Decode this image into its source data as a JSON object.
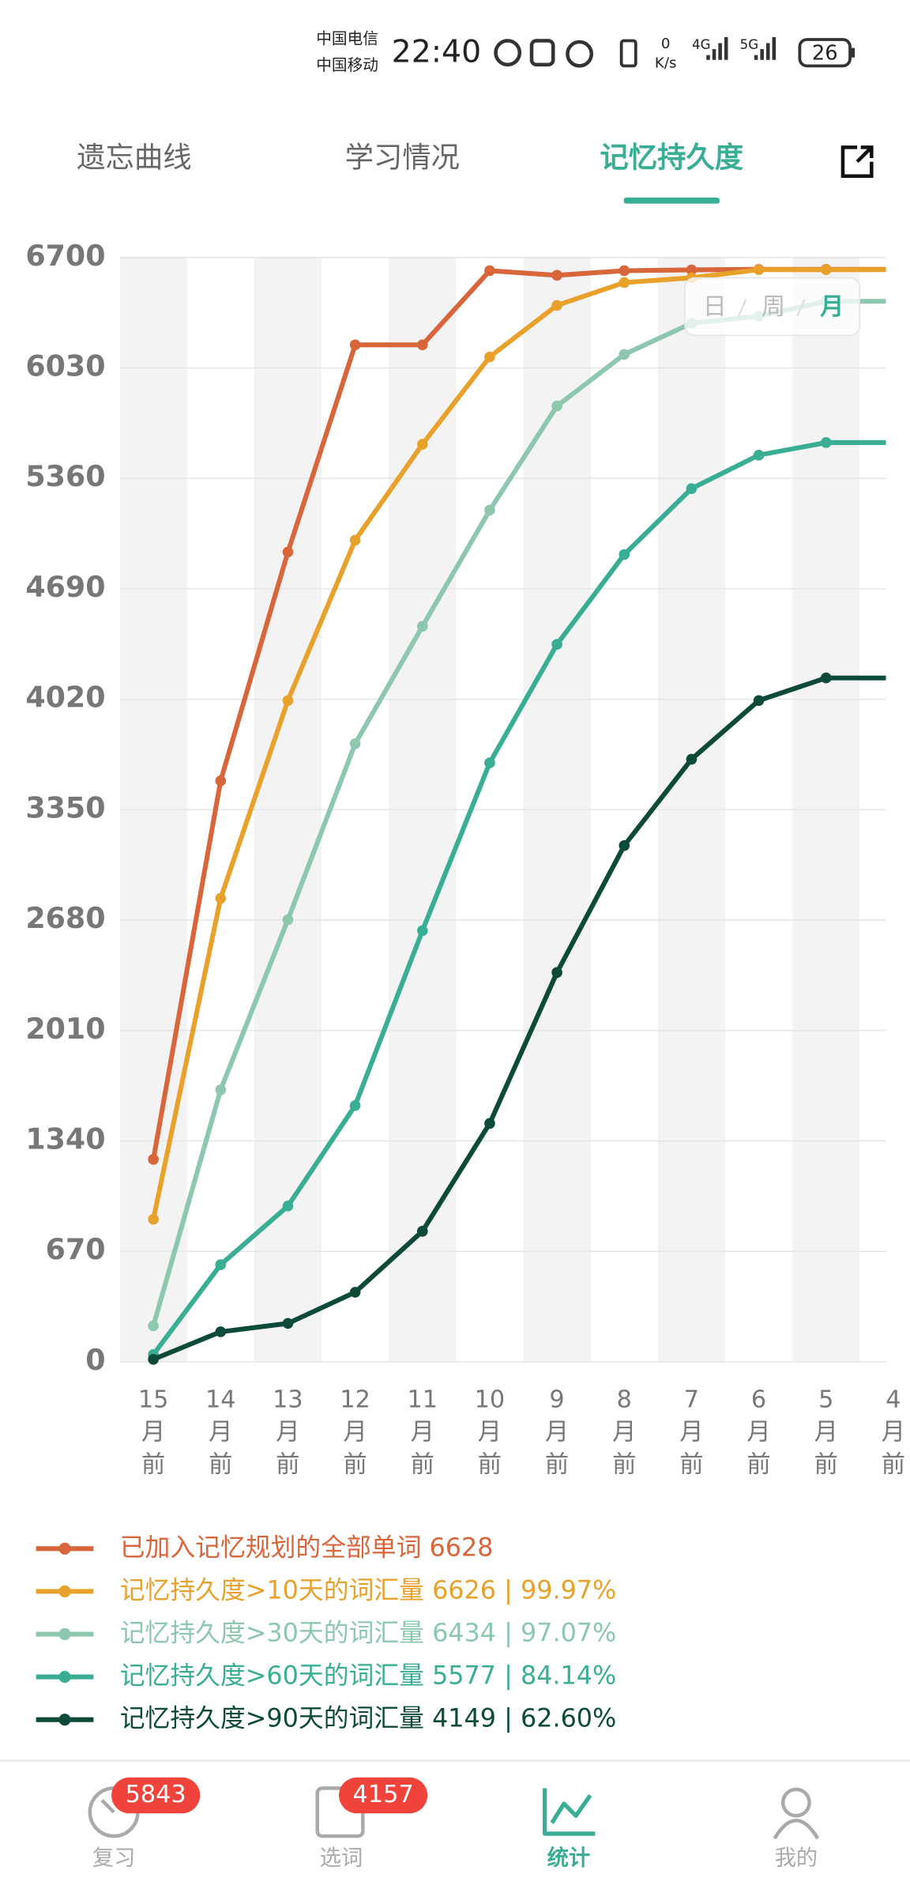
{
  "status_bar": {
    "carrier_1": "中国电信",
    "carrier_2": "中国移动",
    "time": "22:40",
    "speed": "0",
    "speed_unit": "K/s",
    "network_1": "4G",
    "network_2": "5G",
    "battery": "26"
  },
  "tabs": [
    "遗忘曲线",
    "学习情况",
    "记忆持久度"
  ],
  "active_tab": 2,
  "period_toggle": [
    "日",
    "周",
    "月"
  ],
  "active_period": 2,
  "chart_data": {
    "type": "line",
    "categories": [
      "15月前",
      "14月前",
      "13月前",
      "12月前",
      "11月前",
      "10月前",
      "9月前",
      "8月前",
      "7月前",
      "6月前",
      "5月前",
      "4月前"
    ],
    "ylim": [
      0,
      6700
    ],
    "yticks": [
      0,
      670,
      1340,
      2010,
      2680,
      3350,
      4020,
      4690,
      5360,
      6030,
      6700
    ],
    "grid": true,
    "series": [
      {
        "name": "已加入记忆规划的全部单词 6628",
        "color": "#d9653b",
        "values": [
          1228,
          3525,
          4913,
          6170,
          6170,
          6620,
          6592,
          6620,
          6625,
          6628,
          6628,
          6628
        ]
      },
      {
        "name": "记忆持久度>10天的词汇量 6626 | 99.97%",
        "color": "#e8a22c",
        "values": [
          865,
          2812,
          4012,
          4985,
          5567,
          6097,
          6410,
          6548,
          6577,
          6626,
          6626,
          6626
        ]
      },
      {
        "name": "记忆持久度>30天的词汇量 6434 | 97.07%",
        "color": "#8cc7ae",
        "values": [
          218,
          1650,
          2682,
          3750,
          4462,
          5167,
          5799,
          6112,
          6301,
          6344,
          6434,
          6434
        ]
      },
      {
        "name": "记忆持久度>60天的词汇量 5577 | 84.14%",
        "color": "#3aae94",
        "values": [
          44,
          589,
          945,
          1555,
          2616,
          3634,
          4353,
          4898,
          5298,
          5501,
          5577,
          5577
        ]
      },
      {
        "name": "记忆持久度>90天的词汇量 4149 | 62.60%",
        "color": "#0d4a3a",
        "values": [
          15,
          182,
          233,
          422,
          792,
          1446,
          2362,
          3132,
          3656,
          4012,
          4149,
          4149
        ]
      }
    ]
  },
  "nav": [
    {
      "label": "复习",
      "badge": 5843
    },
    {
      "label": "选词",
      "badge": 4157
    },
    {
      "label": "统计"
    },
    {
      "label": "我的"
    }
  ],
  "active_nav": 2
}
